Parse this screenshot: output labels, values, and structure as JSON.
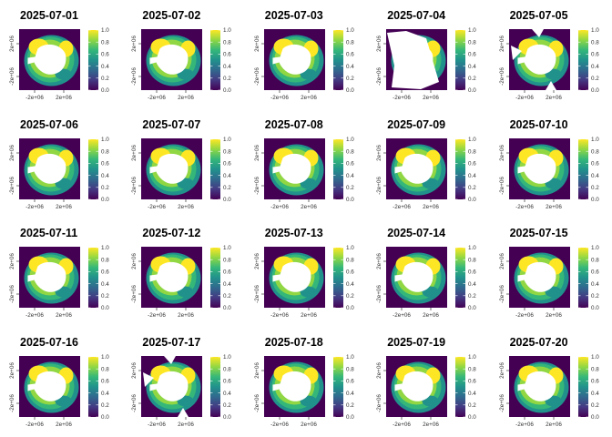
{
  "chart_data": {
    "type": "heatmap",
    "layout": {
      "rows": 4,
      "cols": 5
    },
    "panels": [
      {
        "title": "2025-07-01",
        "missing": "none"
      },
      {
        "title": "2025-07-02",
        "missing": "none"
      },
      {
        "title": "2025-07-03",
        "missing": "none"
      },
      {
        "title": "2025-07-04",
        "missing": "large-west"
      },
      {
        "title": "2025-07-05",
        "missing": "wedges"
      },
      {
        "title": "2025-07-06",
        "missing": "none"
      },
      {
        "title": "2025-07-07",
        "missing": "none"
      },
      {
        "title": "2025-07-08",
        "missing": "none"
      },
      {
        "title": "2025-07-09",
        "missing": "none"
      },
      {
        "title": "2025-07-10",
        "missing": "none"
      },
      {
        "title": "2025-07-11",
        "missing": "none"
      },
      {
        "title": "2025-07-12",
        "missing": "none"
      },
      {
        "title": "2025-07-13",
        "missing": "none"
      },
      {
        "title": "2025-07-14",
        "missing": "none"
      },
      {
        "title": "2025-07-15",
        "missing": "none"
      },
      {
        "title": "2025-07-16",
        "missing": "none"
      },
      {
        "title": "2025-07-17",
        "missing": "wedges"
      },
      {
        "title": "2025-07-18",
        "missing": "none"
      },
      {
        "title": "2025-07-19",
        "missing": "none"
      },
      {
        "title": "2025-07-20",
        "missing": "none"
      }
    ],
    "x_tick_labels": [
      "-2e+06",
      "2e+06"
    ],
    "y_tick_labels": [
      "2e+06",
      "-2e+06"
    ],
    "legend": {
      "range": [
        0.0,
        1.0
      ],
      "tick_labels": [
        "0.0",
        "0.2",
        "0.4",
        "0.6",
        "0.8",
        "1.0"
      ],
      "colors": [
        "#440154",
        "#443983",
        "#31688e",
        "#21918c",
        "#35b779",
        "#90d743",
        "#fde725"
      ]
    },
    "missing_color": "#ffffff",
    "background_color": "#440154",
    "grid": false
  }
}
